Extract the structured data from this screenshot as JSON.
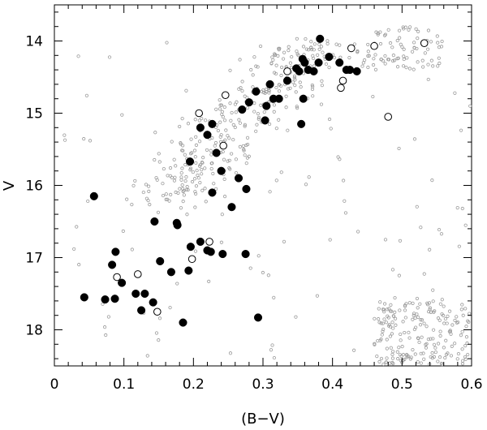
{
  "chart_data": {
    "type": "scatter",
    "title": "",
    "xlabel": "(B−V)",
    "ylabel": "V",
    "xlim": [
      0,
      0.6
    ],
    "ylim": [
      18.5,
      13.5
    ],
    "y_inverted": true,
    "grid": false,
    "legend": "none",
    "x_ticks": [
      {
        "value": 0,
        "label": "0"
      },
      {
        "value": 0.1,
        "label": "0.1"
      },
      {
        "value": 0.2,
        "label": "0.2"
      },
      {
        "value": 0.3,
        "label": "0.3"
      },
      {
        "value": 0.4,
        "label": "0.4"
      },
      {
        "value": 0.5,
        "label": "0.5"
      },
      {
        "value": 0.6,
        "label": "0.6"
      }
    ],
    "y_ticks": [
      {
        "value": 14,
        "label": "14"
      },
      {
        "value": 15,
        "label": "15"
      },
      {
        "value": 16,
        "label": "16"
      },
      {
        "value": 17,
        "label": "17"
      },
      {
        "value": 18,
        "label": "18"
      }
    ],
    "colors": {
      "filled": "#000000",
      "open": "#000000",
      "field": "#9a9a9a"
    },
    "series": [
      {
        "marker": "filled-circle",
        "points": [
          [
            0.382,
            13.97
          ],
          [
            0.395,
            14.22
          ],
          [
            0.41,
            14.3
          ],
          [
            0.38,
            14.3
          ],
          [
            0.357,
            14.25
          ],
          [
            0.36,
            14.3
          ],
          [
            0.365,
            14.4
          ],
          [
            0.373,
            14.42
          ],
          [
            0.352,
            14.42
          ],
          [
            0.348,
            14.38
          ],
          [
            0.42,
            14.4
          ],
          [
            0.425,
            14.4
          ],
          [
            0.435,
            14.42
          ],
          [
            0.335,
            14.55
          ],
          [
            0.31,
            14.6
          ],
          [
            0.29,
            14.7
          ],
          [
            0.358,
            14.8
          ],
          [
            0.323,
            14.8
          ],
          [
            0.315,
            14.8
          ],
          [
            0.305,
            14.9
          ],
          [
            0.28,
            14.85
          ],
          [
            0.27,
            14.95
          ],
          [
            0.303,
            15.1
          ],
          [
            0.355,
            15.15
          ],
          [
            0.227,
            15.15
          ],
          [
            0.21,
            15.2
          ],
          [
            0.22,
            15.3
          ],
          [
            0.233,
            15.55
          ],
          [
            0.195,
            15.67
          ],
          [
            0.24,
            15.8
          ],
          [
            0.265,
            15.9
          ],
          [
            0.276,
            16.05
          ],
          [
            0.227,
            16.1
          ],
          [
            0.057,
            16.15
          ],
          [
            0.255,
            16.3
          ],
          [
            0.144,
            16.5
          ],
          [
            0.176,
            16.52
          ],
          [
            0.177,
            16.55
          ],
          [
            0.21,
            16.78
          ],
          [
            0.22,
            16.9
          ],
          [
            0.196,
            16.85
          ],
          [
            0.275,
            16.95
          ],
          [
            0.088,
            16.92
          ],
          [
            0.242,
            16.95
          ],
          [
            0.225,
            16.92
          ],
          [
            0.152,
            17.05
          ],
          [
            0.083,
            17.1
          ],
          [
            0.168,
            17.2
          ],
          [
            0.193,
            17.18
          ],
          [
            0.097,
            17.35
          ],
          [
            0.117,
            17.5
          ],
          [
            0.13,
            17.5
          ],
          [
            0.043,
            17.55
          ],
          [
            0.073,
            17.58
          ],
          [
            0.087,
            17.57
          ],
          [
            0.142,
            17.62
          ],
          [
            0.125,
            17.73
          ],
          [
            0.185,
            17.9
          ],
          [
            0.293,
            17.83
          ]
        ]
      },
      {
        "marker": "open-circle",
        "points": [
          [
            0.46,
            14.07
          ],
          [
            0.532,
            14.03
          ],
          [
            0.427,
            14.1
          ],
          [
            0.335,
            14.42
          ],
          [
            0.415,
            14.55
          ],
          [
            0.412,
            14.65
          ],
          [
            0.246,
            14.75
          ],
          [
            0.208,
            15.0
          ],
          [
            0.48,
            15.05
          ],
          [
            0.243,
            15.45
          ],
          [
            0.223,
            16.78
          ],
          [
            0.198,
            17.02
          ],
          [
            0.12,
            17.23
          ],
          [
            0.09,
            17.27
          ],
          [
            0.148,
            17.75
          ]
        ]
      }
    ]
  }
}
